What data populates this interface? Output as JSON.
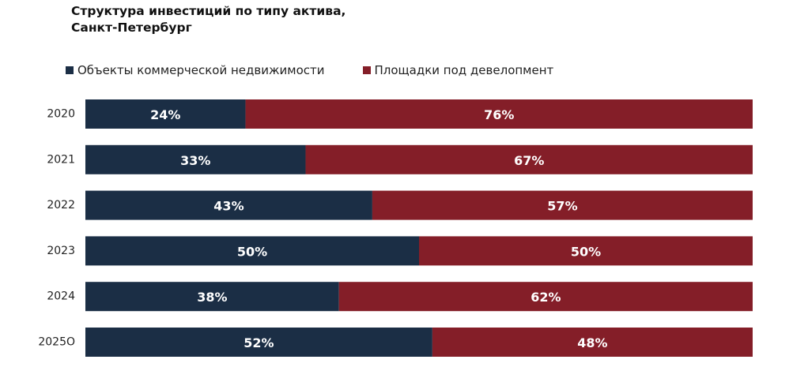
{
  "chart_data": {
    "type": "bar",
    "orientation": "horizontal",
    "stacked": true,
    "title": [
      "Структура инвестиций по типу актива,",
      "Санкт-Петербург"
    ],
    "categories": [
      "2020",
      "2021",
      "2022",
      "2023",
      "2024",
      "2025О"
    ],
    "series": [
      {
        "name": "Объекты коммерческой недвижимости",
        "color": "#1b2e45",
        "values": [
          24,
          33,
          43,
          50,
          38,
          52
        ],
        "labels": [
          "24%",
          "33%",
          "43%",
          "50%",
          "38%",
          "52%"
        ]
      },
      {
        "name": "Площадки под девелопмент",
        "color": "#841e28",
        "values": [
          76,
          67,
          57,
          50,
          62,
          48
        ],
        "labels": [
          "76%",
          "67%",
          "57%",
          "50%",
          "62%",
          "48%"
        ]
      }
    ],
    "xlim": [
      0,
      100
    ],
    "legend_position": "top-left",
    "grid": false
  }
}
